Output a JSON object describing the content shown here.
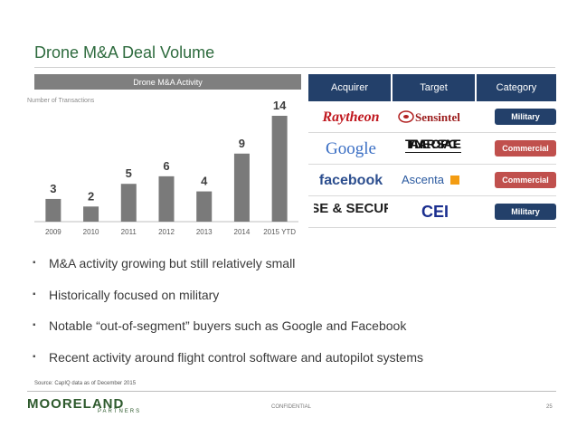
{
  "slide": {
    "title": "Drone M&A Deal Volume",
    "source": "Source: CapIQ data as of December 2015",
    "confidential": "CONFIDENTIAL",
    "page_number": "25"
  },
  "brand": {
    "logo_word": "MOORELAND",
    "logo_sub": "PARTNERS",
    "green": "#2e5a2d"
  },
  "chart_data": {
    "type": "bar",
    "title": "Drone M&A Activity",
    "ylabel": "Number of Transactions",
    "categories": [
      "2009",
      "2010",
      "2011",
      "2012",
      "2013",
      "2014",
      "2015 YTD"
    ],
    "values": [
      3,
      2,
      5,
      6,
      4,
      9,
      14
    ],
    "ylim": [
      0,
      14
    ],
    "bar_color": "#7a7a7a",
    "grid": false
  },
  "table": {
    "headers": {
      "acquirer": "Acquirer",
      "target": "Target",
      "category": "Category"
    },
    "header_color": "#23406a",
    "rows": [
      {
        "acquirer": "Raytheon",
        "target": "Sensintel",
        "category": "Military",
        "category_color": "#23406a"
      },
      {
        "acquirer": "Google",
        "target": "TITAN AEROSPACE",
        "category": "Commercial",
        "category_color": "#c0504d"
      },
      {
        "acquirer": "facebook",
        "target": "Ascenta",
        "category": "Commercial",
        "category_color": "#c0504d"
      },
      {
        "acquirer": "KRATOS DEFENSE & SECURITY SOLUTIONS",
        "target": "CEI",
        "category": "Military",
        "category_color": "#23406a"
      }
    ]
  },
  "bullets": [
    "M&A activity growing but still relatively small",
    "Historically focused on military",
    "Notable “out-of-segment” buyers such as Google and Facebook",
    "Recent activity around flight control software and autopilot systems"
  ],
  "bullet_mark": "▪"
}
